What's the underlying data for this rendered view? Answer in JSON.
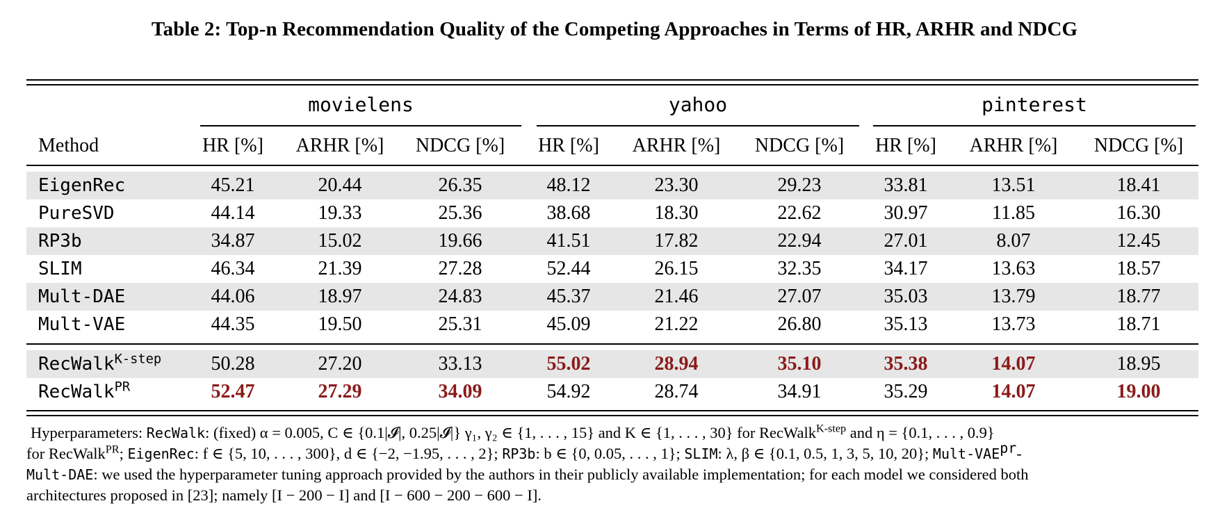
{
  "caption": "Table 2: Top-n Recommendation Quality of the Competing Approaches in Terms of HR, ARHR and NDCG",
  "groups": [
    "movielens",
    "yahoo",
    "pinterest"
  ],
  "header": {
    "method": "Method",
    "metrics": [
      "HR [%]",
      "ARHR [%]",
      "NDCG [%]",
      "HR [%]",
      "ARHR [%]",
      "NDCG [%]",
      "HR [%]",
      "ARHR [%]",
      "NDCG [%]"
    ]
  },
  "rows": [
    {
      "method": "EigenRec",
      "sup": "",
      "values": [
        "45.21",
        "20.44",
        "26.35",
        "48.12",
        "23.30",
        "29.23",
        "33.81",
        "13.51",
        "18.41"
      ],
      "best": []
    },
    {
      "method": "PureSVD",
      "sup": "",
      "values": [
        "44.14",
        "19.33",
        "25.36",
        "38.68",
        "18.30",
        "22.62",
        "30.97",
        "11.85",
        "16.30"
      ],
      "best": []
    },
    {
      "method": "RP3b",
      "sup": "",
      "values": [
        "34.87",
        "15.02",
        "19.66",
        "41.51",
        "17.82",
        "22.94",
        "27.01",
        "8.07",
        "12.45"
      ],
      "best": []
    },
    {
      "method": "SLIM",
      "sup": "",
      "values": [
        "46.34",
        "21.39",
        "27.28",
        "52.44",
        "26.15",
        "32.35",
        "34.17",
        "13.63",
        "18.57"
      ],
      "best": []
    },
    {
      "method": "Mult-DAE",
      "sup": "",
      "values": [
        "44.06",
        "18.97",
        "24.83",
        "45.37",
        "21.46",
        "27.07",
        "35.03",
        "13.79",
        "18.77"
      ],
      "best": []
    },
    {
      "method": "Mult-VAE",
      "sup": "",
      "values": [
        "44.35",
        "19.50",
        "25.31",
        "45.09",
        "21.22",
        "26.80",
        "35.13",
        "13.73",
        "18.71"
      ],
      "best": []
    },
    {
      "method": "RecWalk",
      "sup": "K-step",
      "values": [
        "50.28",
        "27.20",
        "33.13",
        "55.02",
        "28.94",
        "35.10",
        "35.38",
        "14.07",
        "18.95"
      ],
      "best": [
        3,
        4,
        5,
        6,
        7
      ]
    },
    {
      "method": "RecWalk",
      "sup": "PR",
      "values": [
        "52.47",
        "27.29",
        "34.09",
        "54.92",
        "28.74",
        "34.91",
        "35.29",
        "14.07",
        "19.00"
      ],
      "best": [
        0,
        1,
        2,
        7,
        8
      ]
    }
  ],
  "footnote": {
    "p1": "Hyperparameters: ",
    "p2": "RecWalk",
    "p3": ": (fixed) α = 0.005, C ∈ {0.1|𝓘|, 0.25|𝓘|} γ₁, γ₂ ∈ {1, . . . , 15} and K ∈ {1, . . . , 30} for RecWalk",
    "p3sup": "K-step",
    "p4": " and η = {0.1, . . . , 0.9}",
    "line2a": "for RecWalk",
    "line2sup": "PR",
    "line2b": "; ",
    "e1": "EigenRec",
    "line2c": ": f ∈ {5, 10, . . . , 300}, d ∈ {−2, −1.95, . . . , 2}; ",
    "e2": "RP3b",
    "line2d": ": b ∈ {0, 0.05, . . . , 1}; ",
    "e3": "SLIM",
    "line2e": ": λ, β ∈ {0.1, 0.5, 1, 3, 5, 10, 20}; ",
    "e4": "Mult-VAE",
    "e4sup": "pr",
    "line2f": "-",
    "e5": "Mult-DAE",
    "line3": ": we used the hyperparameter tuning approach provided by the authors in their publicly available implementation; for each model we considered both",
    "line4": "architectures proposed in [23]; namely [I − 200 − I] and [I − 600 − 200 − 600 − I]."
  }
}
